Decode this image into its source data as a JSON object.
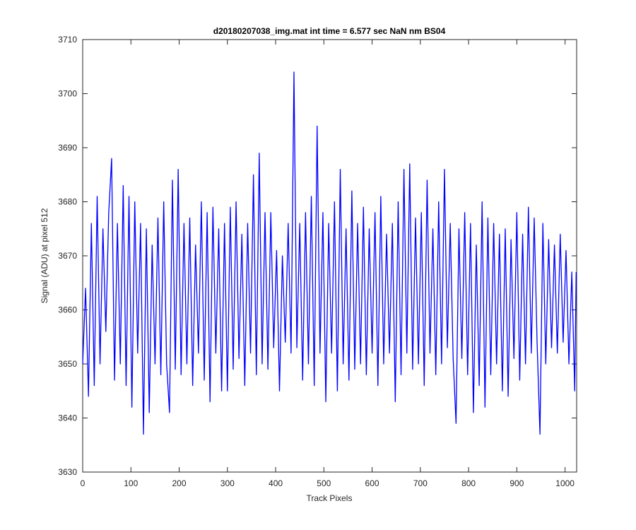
{
  "chart_data": {
    "type": "line",
    "title": "d20180207038_img.mat int time = 6.577 sec  NaN nm BS04",
    "x_label": "Track Pixels",
    "y_label": "Signal (ADU) at pixel 512",
    "xlim": [
      0,
      1024
    ],
    "xticks": [
      0,
      100,
      200,
      300,
      400,
      500,
      600,
      700,
      800,
      900,
      1000
    ],
    "ylim": [
      3630,
      3710
    ],
    "yticks": [
      3630,
      3640,
      3650,
      3660,
      3670,
      3680,
      3690,
      3700,
      3710
    ],
    "x": [
      0,
      6,
      12,
      18,
      24,
      30,
      36,
      42,
      48,
      54,
      60,
      66,
      72,
      78,
      84,
      90,
      96,
      102,
      108,
      114,
      120,
      126,
      132,
      138,
      144,
      150,
      156,
      162,
      168,
      174,
      180,
      186,
      192,
      198,
      204,
      210,
      216,
      222,
      228,
      234,
      240,
      246,
      252,
      258,
      264,
      270,
      276,
      282,
      288,
      294,
      300,
      306,
      312,
      318,
      324,
      330,
      336,
      342,
      348,
      354,
      360,
      366,
      372,
      378,
      384,
      390,
      396,
      402,
      408,
      414,
      420,
      426,
      432,
      438,
      444,
      450,
      456,
      462,
      468,
      474,
      480,
      486,
      492,
      498,
      504,
      510,
      516,
      522,
      528,
      534,
      540,
      546,
      552,
      558,
      564,
      570,
      576,
      582,
      588,
      594,
      600,
      606,
      612,
      618,
      624,
      630,
      636,
      642,
      648,
      654,
      660,
      666,
      672,
      678,
      684,
      690,
      696,
      702,
      708,
      714,
      720,
      726,
      732,
      738,
      744,
      750,
      756,
      762,
      768,
      774,
      780,
      786,
      792,
      798,
      804,
      810,
      816,
      822,
      828,
      834,
      840,
      846,
      852,
      858,
      864,
      870,
      876,
      882,
      888,
      894,
      900,
      906,
      912,
      918,
      924,
      930,
      936,
      942,
      948,
      954,
      960,
      966,
      972,
      978,
      984,
      990,
      996,
      1002,
      1008,
      1014,
      1020,
      1023
    ],
    "series": [
      {
        "color": "#0000ff",
        "values": [
          3650,
          3664,
          3644,
          3676,
          3646,
          3681,
          3650,
          3675,
          3656,
          3678,
          3688,
          3647,
          3676,
          3650,
          3683,
          3646,
          3681,
          3642,
          3680,
          3652,
          3676,
          3637,
          3675,
          3641,
          3672,
          3650,
          3677,
          3648,
          3680,
          3650,
          3641,
          3684,
          3649,
          3686,
          3648,
          3676,
          3650,
          3677,
          3646,
          3672,
          3652,
          3680,
          3647,
          3678,
          3643,
          3679,
          3652,
          3675,
          3645,
          3676,
          3645,
          3679,
          3649,
          3680,
          3651,
          3674,
          3646,
          3676,
          3652,
          3685,
          3648,
          3689,
          3650,
          3678,
          3649,
          3678,
          3653,
          3671,
          3645,
          3670,
          3654,
          3676,
          3652,
          3704,
          3653,
          3676,
          3647,
          3678,
          3650,
          3681,
          3646,
          3694,
          3652,
          3678,
          3643,
          3676,
          3652,
          3680,
          3645,
          3686,
          3650,
          3675,
          3647,
          3682,
          3649,
          3676,
          3650,
          3679,
          3648,
          3675,
          3652,
          3678,
          3646,
          3681,
          3650,
          3674,
          3652,
          3676,
          3643,
          3680,
          3648,
          3686,
          3652,
          3687,
          3649,
          3677,
          3650,
          3678,
          3646,
          3684,
          3652,
          3675,
          3648,
          3680,
          3650,
          3686,
          3653,
          3676,
          3651,
          3639,
          3675,
          3651,
          3678,
          3648,
          3676,
          3641,
          3672,
          3646,
          3680,
          3642,
          3677,
          3648,
          3676,
          3650,
          3674,
          3645,
          3675,
          3644,
          3673,
          3651,
          3678,
          3647,
          3674,
          3650,
          3679,
          3652,
          3677,
          3654,
          3637,
          3676,
          3650,
          3673,
          3653,
          3672,
          3652,
          3674,
          3654,
          3671,
          3650,
          3667,
          3645,
          3667
        ]
      }
    ]
  }
}
